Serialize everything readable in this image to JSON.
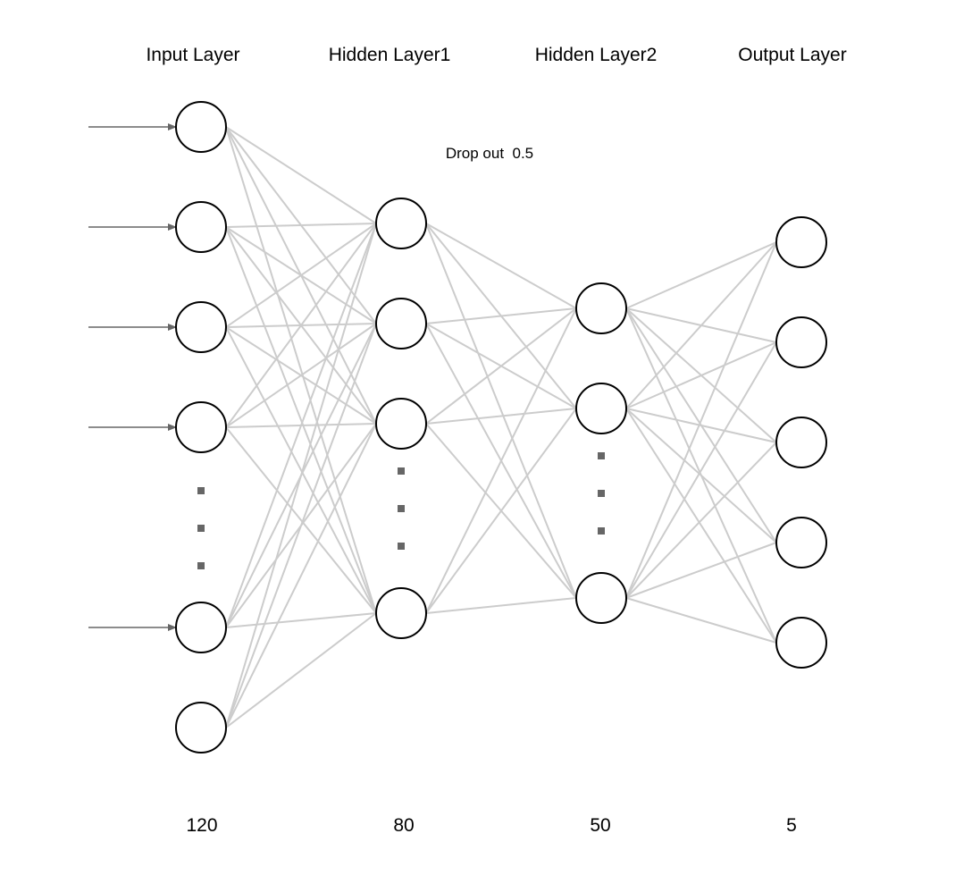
{
  "diagram": {
    "colors": {
      "connection": "#cccccc",
      "node_stroke": "#000000",
      "node_fill": "#ffffff",
      "arrow": "#666666",
      "ellipsis_dot": "#666666",
      "text": "#000000",
      "background": "#ffffff"
    },
    "annotation": "Drop out  0.5",
    "layers": [
      {
        "title": "Input Layer",
        "count": "120",
        "shown_nodes": 6,
        "has_ellipsis": true,
        "input_arrows": true
      },
      {
        "title": "Hidden Layer1",
        "count": "80",
        "shown_nodes": 4,
        "has_ellipsis": true,
        "input_arrows": false
      },
      {
        "title": "Hidden Layer2",
        "count": "50",
        "shown_nodes": 3,
        "has_ellipsis": true,
        "input_arrows": false
      },
      {
        "title": "Output Layer",
        "count": "5",
        "shown_nodes": 5,
        "has_ellipsis": false,
        "input_arrows": false
      }
    ],
    "connectivity": "fully-connected"
  }
}
